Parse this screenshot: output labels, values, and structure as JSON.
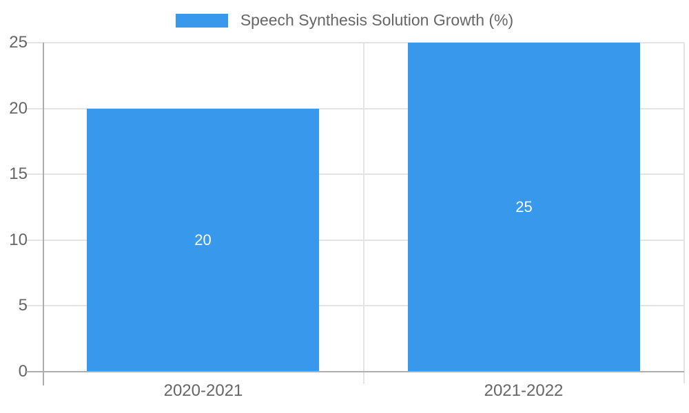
{
  "chart_data": {
    "type": "bar",
    "title": "",
    "legend": {
      "label": "Speech Synthesis Solution Growth (%)",
      "position": "top"
    },
    "categories": [
      "2020-2021",
      "2021-2022"
    ],
    "values": [
      20,
      25
    ],
    "data_labels": [
      "20",
      "25"
    ],
    "y_ticks": [
      0,
      5,
      10,
      15,
      20,
      25
    ],
    "ylim": [
      0,
      25
    ],
    "grid": true,
    "xlabel": "",
    "ylabel": "",
    "colors": {
      "bar": "#3898EC",
      "axis_text": "#666666",
      "bar_label_text": "#FFFFFF",
      "gridline": "#E3E3E3",
      "axis_line": "#ADADAD",
      "background": "#FFFFFF"
    }
  }
}
